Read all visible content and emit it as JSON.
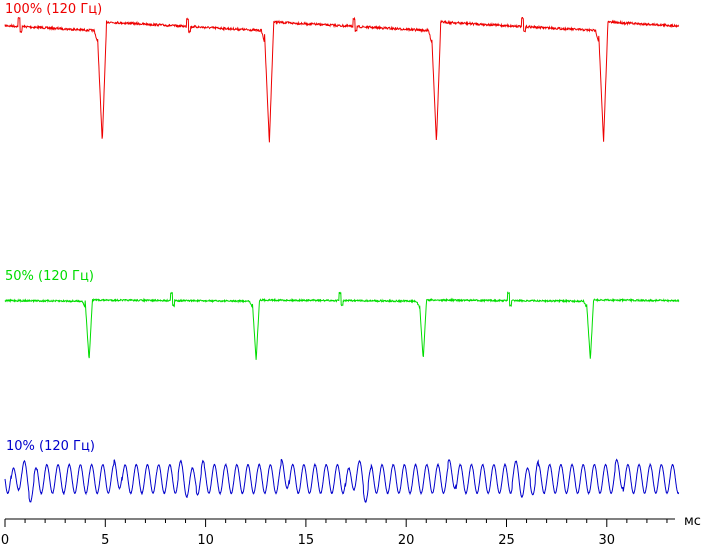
{
  "chart_data": {
    "type": "line",
    "xlabel": "мс",
    "xlim": [
      0,
      33.6
    ],
    "xticks": [
      0,
      5,
      10,
      15,
      20,
      25,
      30
    ],
    "xtick_labels": [
      "0",
      "5",
      "10",
      "15",
      "20",
      "25",
      "30"
    ],
    "minor_tick_step": 1,
    "grid": false,
    "series": [
      {
        "name": "100% (120 Гц)",
        "color": "#ee0000",
        "kind": "pwm_dips",
        "level": 1.0,
        "period_ms": 8.33,
        "first_dip_ms": 4.6,
        "dip_depth": 0.93,
        "dip_width_ms": 0.45,
        "step_ms": [
          0.7,
          9.1,
          17.4,
          25.8
        ]
      },
      {
        "name": "50% (120 Гц)",
        "color": "#00dd00",
        "kind": "pwm_dips",
        "level": 0.5,
        "period_ms": 8.33,
        "first_dip_ms": 4.0,
        "dip_depth": 0.5,
        "dip_width_ms": 0.35,
        "step_ms": [
          8.3,
          16.7,
          25.1
        ]
      },
      {
        "name": "10% (120 Гц)",
        "color": "#0000cc",
        "kind": "oscillation",
        "level": 0.1,
        "osc_period_ms": 0.557,
        "beat_period_ms": 8.33,
        "first_beat_ms": 1.2,
        "amplitude": 0.1
      }
    ]
  }
}
